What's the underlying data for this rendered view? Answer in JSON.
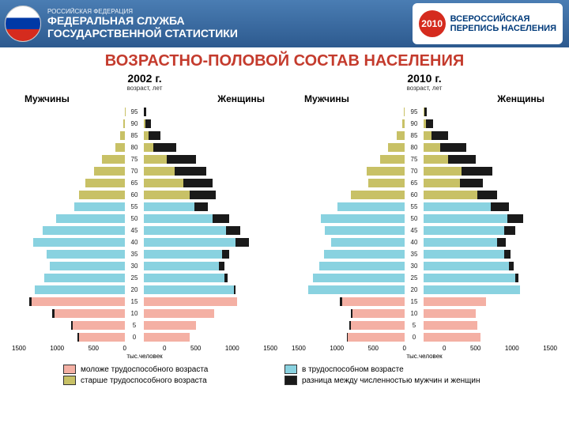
{
  "header": {
    "small": "РОССИЙСКАЯ ФЕДЕРАЦИЯ",
    "line1": "ФЕДЕРАЛЬНАЯ СЛУЖБА",
    "line2": "ГОСУДАРСТВЕННОЙ СТАТИСТИКИ",
    "badge_year": "2010",
    "badge_line1": "ВСЕРОССИЙСКАЯ",
    "badge_line2": "ПЕРЕПИСЬ НАСЕЛЕНИЯ"
  },
  "title": "ВОЗРАСТНО-ПОЛОВОЙ СОСТАВ НАСЕЛЕНИЯ",
  "axis_sub": "возраст, лет",
  "men": "Мужчины",
  "women": "Женщины",
  "x_unit": "тыс.человек",
  "x_ticks": [
    "1500",
    "1000",
    "500",
    "0"
  ],
  "x_max": 1500,
  "colors": {
    "younger": "#f4b0a4",
    "working": "#89d2e0",
    "older": "#c8c166",
    "diff": "#1a1a1a",
    "bg": "#ffffff",
    "title": "#c43b2d"
  },
  "legend": [
    {
      "label": "моложе трудоспособного возраста",
      "color": "#f4b0a4"
    },
    {
      "label": "в трудоспособном возрасте",
      "color": "#89d2e0"
    },
    {
      "label": "старше трудоспособного возраста",
      "color": "#c8c166"
    },
    {
      "label": "разница между численностью мужчин и женщин",
      "color": "#1a1a1a"
    }
  ],
  "pyramids": [
    {
      "year": "2002 г.",
      "ages": [
        95,
        90,
        85,
        80,
        75,
        70,
        65,
        60,
        55,
        50,
        45,
        40,
        35,
        30,
        25,
        20,
        15,
        10,
        5,
        0
      ],
      "men": [
        5,
        20,
        60,
        120,
        300,
        400,
        520,
        600,
        660,
        900,
        1080,
        1200,
        1020,
        980,
        1060,
        1180,
        1250,
        950,
        700,
        620
      ],
      "women": [
        30,
        90,
        220,
        420,
        680,
        820,
        900,
        940,
        840,
        1120,
        1260,
        1380,
        1120,
        1060,
        1100,
        1200,
        1220,
        920,
        680,
        600
      ],
      "cat": [
        "o",
        "o",
        "o",
        "o",
        "o",
        "o",
        "o",
        "o",
        "w",
        "w",
        "w",
        "w",
        "w",
        "w",
        "w",
        "w",
        "y",
        "y",
        "y",
        "y"
      ]
    },
    {
      "year": "2010 г.",
      "ages": [
        95,
        90,
        85,
        80,
        75,
        70,
        65,
        60,
        55,
        50,
        45,
        40,
        35,
        30,
        25,
        20,
        15,
        10,
        5,
        0
      ],
      "men": [
        8,
        30,
        100,
        220,
        320,
        500,
        480,
        700,
        880,
        1100,
        1050,
        960,
        1060,
        1120,
        1200,
        1260,
        850,
        700,
        720,
        760
      ],
      "women": [
        40,
        120,
        320,
        560,
        680,
        900,
        780,
        960,
        1120,
        1300,
        1200,
        1080,
        1140,
        1180,
        1240,
        1260,
        820,
        680,
        700,
        740
      ],
      "cat": [
        "o",
        "o",
        "o",
        "o",
        "o",
        "o",
        "o",
        "o",
        "w",
        "w",
        "w",
        "w",
        "w",
        "w",
        "w",
        "w",
        "y",
        "y",
        "y",
        "y"
      ]
    }
  ]
}
